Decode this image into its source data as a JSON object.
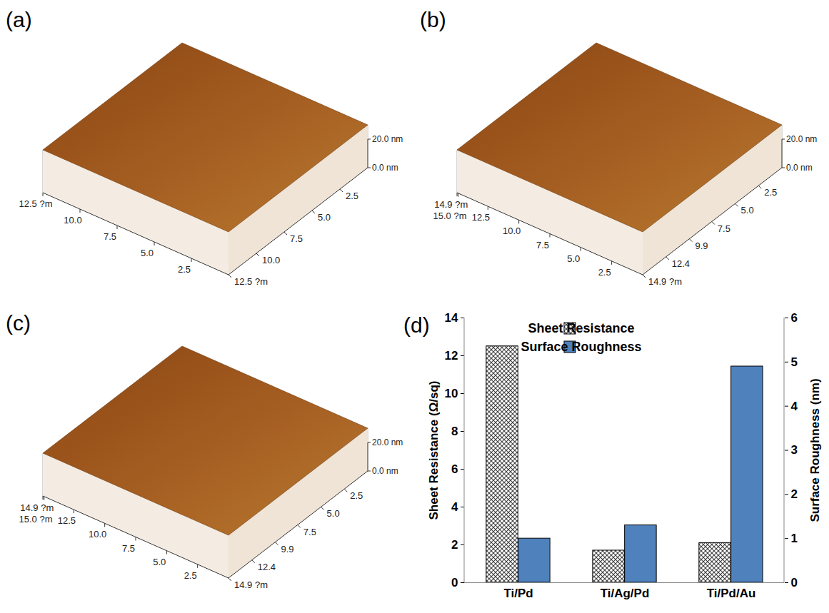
{
  "chart_data": [
    {
      "type": "surface",
      "title": "(a)",
      "xlim": [
        0,
        12.5
      ],
      "xticks": [
        2.5,
        {
          "value": 5,
          "label": "5.0"
        },
        7.5,
        {
          "value": 10,
          "label": "10.0"
        },
        {
          "value": 12.5,
          "label": "12.5 ?m"
        }
      ],
      "ylim": [
        0,
        12.5
      ],
      "yticks": [
        2.5,
        {
          "value": 5,
          "label": "5.0"
        },
        7.5,
        {
          "value": 10,
          "label": "10.0"
        },
        {
          "value": 12.5,
          "label": "12.5 ?m"
        }
      ],
      "zlim": [
        0,
        20
      ],
      "zticks": [
        {
          "value": 0,
          "label": "0.0 nm"
        },
        {
          "value": 20,
          "label": "20.0 nm"
        }
      ]
    },
    {
      "type": "surface",
      "title": "(b)",
      "xlim": [
        0,
        15
      ],
      "xticks": [
        2.5,
        {
          "value": 5,
          "label": "5.0"
        },
        7.5,
        {
          "value": 10,
          "label": "10.0"
        },
        12.5,
        {
          "value": 14.9,
          "label": "14.9 ?m"
        },
        {
          "value": 15,
          "label": "15.0 ?m"
        }
      ],
      "ylim": [
        0,
        14.9
      ],
      "yticks": [
        2.5,
        {
          "value": 5,
          "label": "5.0"
        },
        7.5,
        9.9,
        12.4,
        {
          "value": 14.9,
          "label": "14.9 ?m"
        }
      ],
      "zlim": [
        0,
        20
      ],
      "zticks": [
        {
          "value": 0,
          "label": "0.0 nm"
        },
        {
          "value": 20,
          "label": "20.0 nm"
        }
      ]
    },
    {
      "type": "surface",
      "title": "(c)",
      "xlim": [
        0,
        15
      ],
      "xticks": [
        2.5,
        {
          "value": 5,
          "label": "5.0"
        },
        7.5,
        {
          "value": 10,
          "label": "10.0"
        },
        12.5,
        {
          "value": 14.9,
          "label": "14.9 ?m"
        },
        {
          "value": 15,
          "label": "15.0 ?m"
        }
      ],
      "ylim": [
        0,
        14.9
      ],
      "yticks": [
        2.5,
        {
          "value": 5,
          "label": "5.0"
        },
        7.5,
        9.9,
        12.4,
        {
          "value": 14.9,
          "label": "14.9 ?m"
        }
      ],
      "zlim": [
        0,
        20
      ],
      "zticks": [
        {
          "value": 0,
          "label": "0.0 nm"
        },
        {
          "value": 20,
          "label": "20.0 nm"
        }
      ]
    },
    {
      "type": "bar",
      "title": "(d)",
      "categories": [
        "Ti/Pd",
        "Ti/Ag/Pd",
        "Ti/Pd/Au"
      ],
      "series": [
        {
          "name": "Sheet Resistance",
          "color": "#404040",
          "values": [
            12.5,
            1.7,
            2.1
          ]
        },
        {
          "name": "Surface Roughness",
          "color": "#4f81bd",
          "values": [
            1.0,
            1.3,
            4.9
          ],
          "axis": "y2"
        }
      ],
      "ylabel": "Sheet Resistance (Ω/sq)",
      "y2label": "Surface Roughness (nm)",
      "ylim": [
        0,
        14
      ],
      "yticks": [
        0,
        2,
        4,
        6,
        8,
        10,
        12,
        14
      ],
      "y2lim": [
        0,
        6
      ],
      "y2ticks": [
        0,
        1,
        2,
        3,
        4,
        5,
        6
      ],
      "legend": "top"
    }
  ]
}
